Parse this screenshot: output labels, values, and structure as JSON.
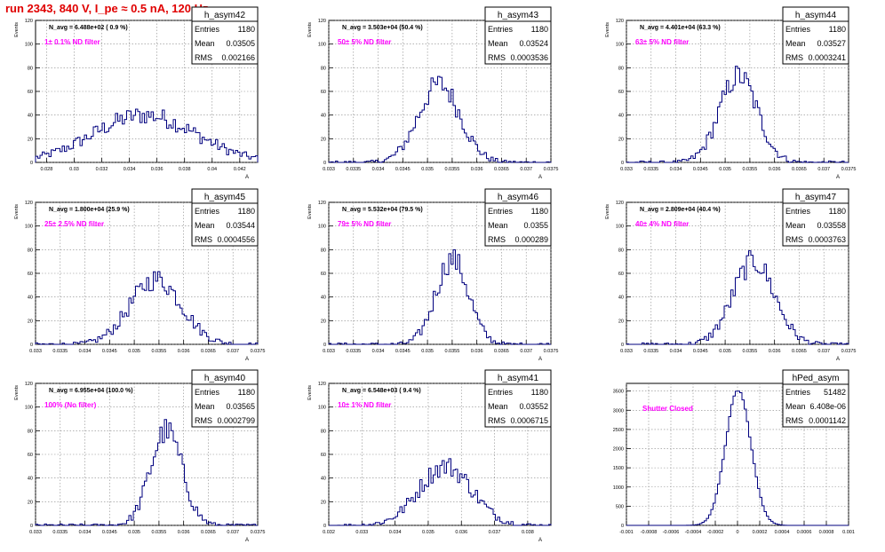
{
  "run_title": "run 2343,   840 V, I_pe ≈ 0.5 nA, 120 Hz",
  "colors": {
    "histogram": "#00007f",
    "filter_label": "#ff00ff",
    "run_title": "#e00000",
    "grid": "#888888"
  },
  "chart_data": [
    {
      "type": "bar",
      "hist": "h_asym42",
      "info": "N_avg = 6.488e+02 ( 0.9 %)",
      "filter": "1± 0.1% ND filter",
      "ylabel": "Events",
      "xlabel": "A",
      "stats": [
        {
          "k": "Entries",
          "v": "1180"
        },
        {
          "k": "Mean",
          "v": "0.03505"
        },
        {
          "k": "RMS",
          "v": "0.002166"
        }
      ],
      "xlim": [
        0.0272,
        0.0433
      ],
      "ylim": [
        0,
        120
      ],
      "xticks": [
        "0.028",
        "0.03",
        "0.032",
        "0.034",
        "0.036",
        "0.038",
        "0.04",
        "0.042"
      ],
      "yticks": [
        "0",
        "20",
        "40",
        "60",
        "80",
        "100",
        "120"
      ],
      "peak": {
        "x": 0.0351,
        "y": 40
      },
      "width": 0.0037,
      "shape": "broad"
    },
    {
      "type": "bar",
      "hist": "h_asym43",
      "info": "N_avg = 3.503e+04 (50.4 %)",
      "filter": "50± 5% ND filter",
      "ylabel": "Events",
      "xlabel": "A",
      "stats": [
        {
          "k": "Entries",
          "v": "1180"
        },
        {
          "k": "Mean",
          "v": "0.03524"
        },
        {
          "k": "RMS",
          "v": "0.0003536"
        }
      ],
      "xlim": [
        0.033,
        0.0375
      ],
      "ylim": [
        0,
        120
      ],
      "xticks": [
        "0.033",
        "0.0335",
        "0.034",
        "0.0345",
        "0.035",
        "0.0355",
        "0.036",
        "0.0365",
        "0.037",
        "0.0375"
      ],
      "yticks": [
        "0",
        "20",
        "40",
        "60",
        "80",
        "100",
        "120"
      ],
      "peak": {
        "x": 0.03524,
        "y": 66
      },
      "width": 0.00042,
      "shape": "normal"
    },
    {
      "type": "bar",
      "hist": "h_asym44",
      "info": "N_avg = 4.401e+04 (63.3 %)",
      "filter": "63± 5% ND filter",
      "ylabel": "Events",
      "xlabel": "A",
      "stats": [
        {
          "k": "Entries",
          "v": "1180"
        },
        {
          "k": "Mean",
          "v": "0.03527"
        },
        {
          "k": "RMS",
          "v": "0.0003241"
        }
      ],
      "xlim": [
        0.033,
        0.0375
      ],
      "ylim": [
        0,
        120
      ],
      "xticks": [
        "0.033",
        "0.0335",
        "0.034",
        "0.0345",
        "0.035",
        "0.0355",
        "0.036",
        "0.0365",
        "0.037",
        "0.0375"
      ],
      "yticks": [
        "0",
        "20",
        "40",
        "60",
        "80",
        "100",
        "120"
      ],
      "peak": {
        "x": 0.03527,
        "y": 73
      },
      "width": 0.00038,
      "shape": "normal"
    },
    {
      "type": "bar",
      "hist": "h_asym45",
      "info": "N_avg = 1.800e+04 (25.9 %)",
      "filter": "25± 2.5% ND filter",
      "ylabel": "Events",
      "xlabel": "A",
      "stats": [
        {
          "k": "Entries",
          "v": "1180"
        },
        {
          "k": "Mean",
          "v": "0.03544"
        },
        {
          "k": "RMS",
          "v": "0.0004556"
        }
      ],
      "xlim": [
        0.033,
        0.0375
      ],
      "ylim": [
        0,
        120
      ],
      "xticks": [
        "0.033",
        "0.0335",
        "0.034",
        "0.0345",
        "0.035",
        "0.0355",
        "0.036",
        "0.0365",
        "0.037",
        "0.0375"
      ],
      "yticks": [
        "0",
        "20",
        "40",
        "60",
        "80",
        "100",
        "120"
      ],
      "peak": {
        "x": 0.03544,
        "y": 55
      },
      "width": 0.00052,
      "shape": "normal"
    },
    {
      "type": "bar",
      "hist": "h_asym46",
      "info": "N_avg = 5.532e+04 (79.5 %)",
      "filter": "79± 5% ND filter",
      "ylabel": "Events",
      "xlabel": "A",
      "stats": [
        {
          "k": "Entries",
          "v": "1180"
        },
        {
          "k": "Mean",
          "v": "0.0355"
        },
        {
          "k": "RMS",
          "v": "0.000289"
        }
      ],
      "xlim": [
        0.033,
        0.0375
      ],
      "ylim": [
        0,
        120
      ],
      "xticks": [
        "0.033",
        "0.0335",
        "0.034",
        "0.0345",
        "0.035",
        "0.0355",
        "0.036",
        "0.0365",
        "0.037",
        "0.0375"
      ],
      "yticks": [
        "0",
        "20",
        "40",
        "60",
        "80",
        "100",
        "120"
      ],
      "peak": {
        "x": 0.0355,
        "y": 72
      },
      "width": 0.00033,
      "shape": "normal"
    },
    {
      "type": "bar",
      "hist": "h_asym47",
      "info": "N_avg = 2.809e+04 (40.4 %)",
      "filter": "40± 4% ND filter",
      "ylabel": "Events",
      "xlabel": "A",
      "stats": [
        {
          "k": "Entries",
          "v": "1180"
        },
        {
          "k": "Mean",
          "v": "0.03558"
        },
        {
          "k": "RMS",
          "v": "0.0003763"
        }
      ],
      "xlim": [
        0.033,
        0.0375
      ],
      "ylim": [
        0,
        120
      ],
      "xticks": [
        "0.033",
        "0.0335",
        "0.034",
        "0.0345",
        "0.035",
        "0.0355",
        "0.036",
        "0.0365",
        "0.037",
        "0.0375"
      ],
      "yticks": [
        "0",
        "20",
        "40",
        "60",
        "80",
        "100",
        "120"
      ],
      "peak": {
        "x": 0.03558,
        "y": 70
      },
      "width": 0.00042,
      "shape": "normal"
    },
    {
      "type": "bar",
      "hist": "h_asym40",
      "info": "N_avg = 6.955e+04 (100.0 %)",
      "filter": "100% (No filter)",
      "ylabel": "Events",
      "xlabel": "A",
      "stats": [
        {
          "k": "Entries",
          "v": "1180"
        },
        {
          "k": "Mean",
          "v": "0.03565"
        },
        {
          "k": "RMS",
          "v": "0.0002799"
        }
      ],
      "xlim": [
        0.033,
        0.0375
      ],
      "ylim": [
        0,
        120
      ],
      "xticks": [
        "0.033",
        "0.0335",
        "0.034",
        "0.0345",
        "0.035",
        "0.0355",
        "0.036",
        "0.0365",
        "0.037",
        "0.0375"
      ],
      "yticks": [
        "0",
        "20",
        "40",
        "60",
        "80",
        "100",
        "120"
      ],
      "peak": {
        "x": 0.03565,
        "y": 80
      },
      "width": 0.00032,
      "shape": "normal"
    },
    {
      "type": "bar",
      "hist": "h_asym41",
      "info": "N_avg = 6.548e+03 ( 9.4 %)",
      "filter": "10± 1% ND filter",
      "ylabel": "Events",
      "xlabel": "A",
      "stats": [
        {
          "k": "Entries",
          "v": "1180"
        },
        {
          "k": "Mean",
          "v": "0.03552"
        },
        {
          "k": "RMS",
          "v": "0.0006715"
        }
      ],
      "xlim": [
        0.032,
        0.0387
      ],
      "ylim": [
        0,
        120
      ],
      "xticks": [
        "0.032",
        "0.033",
        "0.034",
        "0.035",
        "0.036",
        "0.037",
        "0.038"
      ],
      "yticks": [
        "0",
        "20",
        "40",
        "60",
        "80",
        "100",
        "120"
      ],
      "peak": {
        "x": 0.03552,
        "y": 50
      },
      "width": 0.0008,
      "shape": "normal"
    },
    {
      "type": "bar",
      "hist": "hPed_asym",
      "info": "",
      "filter": "Shutter Closed",
      "ylabel": "",
      "xlabel": "",
      "stats": [
        {
          "k": "Entries",
          "v": "51482"
        },
        {
          "k": "Mean",
          "v": "6.408e-06"
        },
        {
          "k": "RMS",
          "v": "0.0001142"
        }
      ],
      "xlim": [
        -0.001,
        0.001
      ],
      "ylim": [
        0,
        3700
      ],
      "xticks": [
        "-0.001",
        "-0.0008",
        "-0.0006",
        "-0.0004",
        "-0.0002",
        "0",
        "0.0002",
        "0.0004",
        "0.0006",
        "0.0008",
        "0.001"
      ],
      "yticks": [
        "0",
        "500",
        "1000",
        "1500",
        "2000",
        "2500",
        "3000",
        "3500"
      ],
      "peak": {
        "x": 6.4e-06,
        "y": 3520
      },
      "width": 0.0001142,
      "shape": "normal"
    }
  ]
}
